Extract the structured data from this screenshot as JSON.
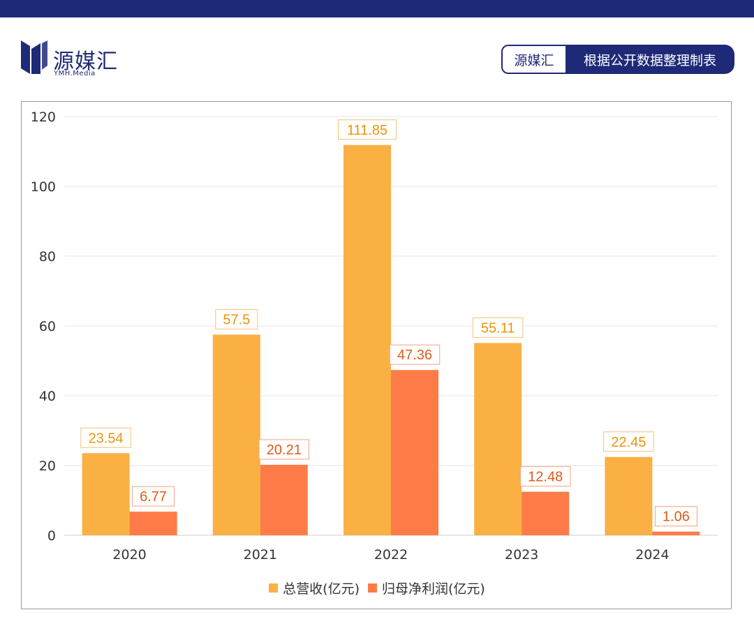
{
  "brand": {
    "name": "源媒汇",
    "sub": "YMH.Media"
  },
  "source": {
    "name": "源媒汇",
    "desc": "根据公开数据整理制表"
  },
  "colors": {
    "header": "#1e2a78",
    "revenue": "#fbb044",
    "profit": "#ff7b47",
    "revenue_label": "#e8950a",
    "profit_label": "#e05a1a"
  },
  "chart_data": {
    "type": "bar",
    "title": "",
    "xlabel": "",
    "ylabel": "",
    "categories": [
      "2020",
      "2021",
      "2022",
      "2023",
      "2024"
    ],
    "series": [
      {
        "name": "总营收(亿元)",
        "values": [
          23.54,
          57.5,
          111.85,
          55.11,
          22.45
        ]
      },
      {
        "name": "归母净利润(亿元)",
        "values": [
          6.77,
          20.21,
          47.36,
          12.48,
          1.06
        ]
      }
    ],
    "value_labels": [
      [
        "23.54",
        "57.5",
        "111.85",
        "55.11",
        "22.45"
      ],
      [
        "6.77",
        "20.21",
        "47.36",
        "12.48",
        "1.06"
      ]
    ],
    "ylim": [
      0,
      120
    ],
    "yticks": [
      "0",
      "20",
      "40",
      "60",
      "80",
      "100",
      "120"
    ],
    "grid": true,
    "legend": "bottom"
  }
}
